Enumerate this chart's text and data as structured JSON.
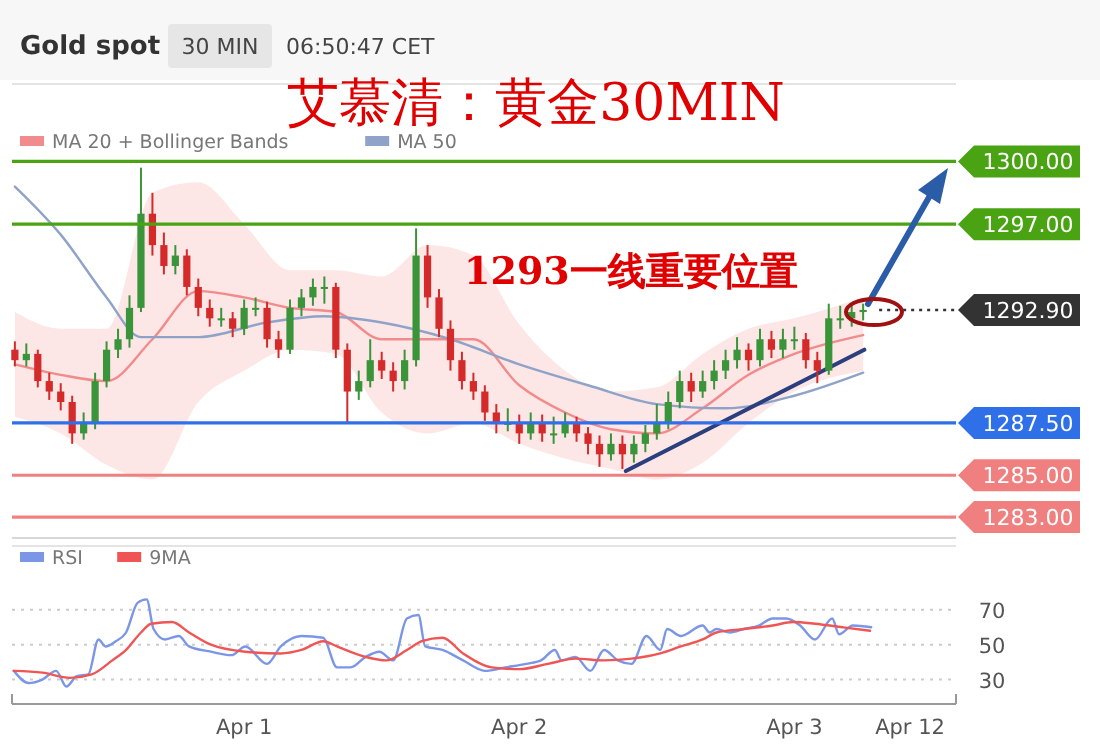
{
  "chart_data": [
    {
      "type": "candlestick",
      "title": "Gold spot",
      "subtitle": "艾慕清：黄金30MIN",
      "annotations": [
        "30 MIN",
        "06:50:47 CET",
        "1293一线重要位置"
      ],
      "xlim": [
        "--03-31T03:45",
        "--04-03T14:06"
      ],
      "ylim": [
        1282,
        1303.7
      ],
      "legend": "top left",
      "x": [
        "--03-31T04:00",
        "--03-31T05:00",
        "--03-31T06:00",
        "--03-31T07:00",
        "--03-31T08:00",
        "--03-31T09:00",
        "--03-31T10:00",
        "--03-31T11:00",
        "--03-31T12:00",
        "--03-31T13:00",
        "--03-31T14:00",
        "--03-31T15:00",
        "--03-31T16:00",
        "--03-31T17:00",
        "--03-31T18:00",
        "--03-31T19:00",
        "--03-31T20:00",
        "--03-31T21:00",
        "--03-31T22:00",
        "--03-31T23:00",
        "--04-01T00:00",
        "--04-01T01:00",
        "--04-01T02:00",
        "--04-01T03:00",
        "--04-01T04:00",
        "--04-01T05:00",
        "--04-01T06:00",
        "--04-01T07:00",
        "--04-01T08:00",
        "--04-01T09:00",
        "--04-01T10:00",
        "--04-01T11:00",
        "--04-01T12:00",
        "--04-01T13:00",
        "--04-01T14:00",
        "--04-01T15:00",
        "--04-01T16:00",
        "--04-01T17:00",
        "--04-01T18:00",
        "--04-01T19:00",
        "--04-01T20:00",
        "--04-01T21:00",
        "--04-01T22:00",
        "--04-01T23:00",
        "--04-02T00:00",
        "--04-02T01:00",
        "--04-02T02:00",
        "--04-02T03:00",
        "--04-02T04:00",
        "--04-02T05:00",
        "--04-02T06:00",
        "--04-02T07:00",
        "--04-02T08:00",
        "--04-02T09:00",
        "--04-02T10:00",
        "--04-02T11:00",
        "--04-02T12:00",
        "--04-02T13:00",
        "--04-02T14:00",
        "--04-02T15:00",
        "--04-02T16:00",
        "--04-02T17:00",
        "--04-02T18:00",
        "--04-02T19:00",
        "--04-02T20:00",
        "--04-02T21:00",
        "--04-02T22:00",
        "--04-02T23:00",
        "--04-03T00:00",
        "--04-03T01:00",
        "--04-03T02:00",
        "--04-03T03:00",
        "--04-03T04:00",
        "--04-03T05:00",
        "--04-03T06:00"
      ],
      "ohlc": [
        [
          1291.0,
          1291.4,
          1290.2,
          1290.5
        ],
        [
          1290.5,
          1291.3,
          1290.2,
          1290.8
        ],
        [
          1290.8,
          1291.0,
          1289.2,
          1289.5
        ],
        [
          1289.5,
          1289.9,
          1288.6,
          1289.0
        ],
        [
          1289.0,
          1289.4,
          1288.1,
          1288.5
        ],
        [
          1288.5,
          1288.8,
          1286.5,
          1287.0
        ],
        [
          1287.0,
          1288.0,
          1286.7,
          1287.5
        ],
        [
          1287.5,
          1289.9,
          1287.2,
          1289.5
        ],
        [
          1289.5,
          1291.4,
          1289.2,
          1291.0
        ],
        [
          1291.0,
          1292.0,
          1290.6,
          1291.5
        ],
        [
          1291.5,
          1293.6,
          1291.1,
          1293.0
        ],
        [
          1293.0,
          1299.7,
          1292.8,
          1297.5
        ],
        [
          1297.5,
          1298.5,
          1295.5,
          1296.0
        ],
        [
          1296.0,
          1296.6,
          1294.6,
          1295.0
        ],
        [
          1295.0,
          1296.0,
          1294.6,
          1295.5
        ],
        [
          1295.5,
          1295.8,
          1293.6,
          1294.0
        ],
        [
          1294.0,
          1294.4,
          1292.6,
          1293.0
        ],
        [
          1293.0,
          1293.4,
          1292.1,
          1292.5
        ],
        [
          1292.5,
          1293.0,
          1292.1,
          1292.5
        ],
        [
          1292.5,
          1292.8,
          1291.6,
          1292.0
        ],
        [
          1292.0,
          1293.4,
          1291.7,
          1293.0
        ],
        [
          1293.0,
          1293.5,
          1292.6,
          1293.0
        ],
        [
          1293.0,
          1293.3,
          1291.1,
          1291.5
        ],
        [
          1291.5,
          1291.9,
          1290.6,
          1291.0
        ],
        [
          1291.0,
          1293.4,
          1290.8,
          1293.0
        ],
        [
          1293.0,
          1293.9,
          1292.6,
          1293.5
        ],
        [
          1293.5,
          1294.4,
          1293.1,
          1294.0
        ],
        [
          1294.0,
          1294.5,
          1293.2,
          1294.0
        ],
        [
          1294.0,
          1294.2,
          1290.6,
          1291.0
        ],
        [
          1291.0,
          1291.3,
          1287.5,
          1289.0
        ],
        [
          1289.0,
          1290.0,
          1288.6,
          1289.5
        ],
        [
          1289.5,
          1291.5,
          1289.2,
          1290.5
        ],
        [
          1290.5,
          1290.9,
          1289.6,
          1290.0
        ],
        [
          1290.0,
          1290.4,
          1289.0,
          1289.5
        ],
        [
          1289.5,
          1291.0,
          1289.1,
          1290.5
        ],
        [
          1290.5,
          1296.8,
          1290.2,
          1295.5
        ],
        [
          1295.5,
          1296.0,
          1293.0,
          1293.5
        ],
        [
          1293.5,
          1293.9,
          1291.6,
          1292.0
        ],
        [
          1292.0,
          1292.4,
          1290.0,
          1290.5
        ],
        [
          1290.5,
          1290.9,
          1289.1,
          1289.5
        ],
        [
          1289.5,
          1289.9,
          1288.6,
          1289.0
        ],
        [
          1289.0,
          1289.3,
          1287.6,
          1288.0
        ],
        [
          1288.0,
          1288.4,
          1287.0,
          1287.5
        ],
        [
          1287.5,
          1288.2,
          1287.1,
          1287.5
        ],
        [
          1287.5,
          1287.9,
          1286.5,
          1287.0
        ],
        [
          1287.0,
          1288.0,
          1286.7,
          1287.5
        ],
        [
          1287.5,
          1287.9,
          1286.6,
          1287.0
        ],
        [
          1287.0,
          1287.8,
          1286.5,
          1287.0
        ],
        [
          1287.0,
          1288.0,
          1286.8,
          1287.5
        ],
        [
          1287.5,
          1287.8,
          1286.6,
          1287.0
        ],
        [
          1287.0,
          1287.3,
          1286.0,
          1286.5
        ],
        [
          1286.5,
          1286.9,
          1285.4,
          1286.0
        ],
        [
          1286.0,
          1287.0,
          1285.7,
          1286.5
        ],
        [
          1286.5,
          1286.9,
          1285.3,
          1286.0
        ],
        [
          1286.0,
          1286.9,
          1285.6,
          1286.5
        ],
        [
          1286.5,
          1287.4,
          1286.1,
          1287.0
        ],
        [
          1287.0,
          1288.4,
          1286.7,
          1287.5
        ],
        [
          1287.5,
          1289.0,
          1287.2,
          1288.5
        ],
        [
          1288.5,
          1290.0,
          1288.2,
          1289.5
        ],
        [
          1289.5,
          1289.9,
          1288.5,
          1289.0
        ],
        [
          1289.0,
          1290.0,
          1288.7,
          1289.5
        ],
        [
          1289.5,
          1290.5,
          1289.1,
          1290.0
        ],
        [
          1290.0,
          1291.0,
          1289.6,
          1290.5
        ],
        [
          1290.5,
          1291.6,
          1290.1,
          1291.0
        ],
        [
          1291.0,
          1291.3,
          1290.0,
          1290.5
        ],
        [
          1290.5,
          1292.0,
          1290.2,
          1291.5
        ],
        [
          1291.5,
          1291.9,
          1290.6,
          1291.0
        ],
        [
          1291.0,
          1292.0,
          1290.6,
          1291.5
        ],
        [
          1291.5,
          1292.1,
          1291.0,
          1291.5
        ],
        [
          1291.5,
          1291.8,
          1290.1,
          1290.5
        ],
        [
          1290.5,
          1290.9,
          1289.4,
          1290.0
        ],
        [
          1290.0,
          1293.2,
          1289.8,
          1292.5
        ],
        [
          1292.5,
          1293.1,
          1292.0,
          1292.5
        ],
        [
          1292.5,
          1293.2,
          1292.1,
          1292.8
        ],
        [
          1292.8,
          1293.2,
          1292.4,
          1292.9
        ]
      ],
      "colors": [
        "#d42a2a",
        "#3a943a",
        "#d42a2a",
        "#d42a2a",
        "#d42a2a",
        "#d42a2a",
        "#3a943a",
        "#3a943a",
        "#3a943a",
        "#3a943a",
        "#3a943a",
        "#3a943a",
        "#d42a2a",
        "#d42a2a",
        "#3a943a",
        "#d42a2a",
        "#d42a2a",
        "#d42a2a",
        "#3a943a",
        "#d42a2a",
        "#3a943a",
        "#3a943a",
        "#d42a2a",
        "#d42a2a",
        "#3a943a",
        "#3a943a",
        "#3a943a",
        "#3a943a",
        "#d42a2a",
        "#d42a2a",
        "#3a943a",
        "#3a943a",
        "#d42a2a",
        "#d42a2a",
        "#3a943a",
        "#3a943a",
        "#d42a2a",
        "#d42a2a",
        "#d42a2a",
        "#d42a2a",
        "#d42a2a",
        "#d42a2a",
        "#d42a2a",
        "#3a943a",
        "#d42a2a",
        "#3a943a",
        "#d42a2a",
        "#3a943a",
        "#3a943a",
        "#d42a2a",
        "#d42a2a",
        "#d42a2a",
        "#3a943a",
        "#d42a2a",
        "#3a943a",
        "#3a943a",
        "#3a943a",
        "#3a943a",
        "#3a943a",
        "#d42a2a",
        "#3a943a",
        "#3a943a",
        "#3a943a",
        "#3a943a",
        "#d42a2a",
        "#3a943a",
        "#d42a2a",
        "#3a943a",
        "#3a943a",
        "#d42a2a",
        "#d42a2a",
        "#3a943a",
        "#3a943a",
        "#3a943a",
        "#3a943a"
      ],
      "series": [
        {
          "type": "line",
          "name": "MA 20 + Bollinger Bands",
          "color": "#f28b8b",
          "x": [
            "--03-31T04:00",
            "--03-31T08:00",
            "--03-31T12:00",
            "--03-31T16:00",
            "--03-31T20:00",
            "--04-01T00:00",
            "--04-01T04:00",
            "--04-01T08:00",
            "--04-01T12:00",
            "--04-01T16:00",
            "--04-01T20:00",
            "--04-02T00:00",
            "--04-02T04:00",
            "--04-02T08:00",
            "--04-02T12:00",
            "--04-02T16:00",
            "--04-02T20:00",
            "--04-03T00:00",
            "--04-03T06:00"
          ],
          "values": [
            1290.3,
            1289.8,
            1289.5,
            1291.5,
            1293.8,
            1293.5,
            1293.0,
            1292.8,
            1291.5,
            1291.5,
            1291.5,
            1289.3,
            1288.0,
            1287.2,
            1287.0,
            1288.2,
            1289.8,
            1290.8,
            1291.7
          ],
          "lower": [
            1287.8,
            1287.0,
            1285.5,
            1284.8,
            1288.5,
            1290.0,
            1291.0,
            1290.8,
            1288.0,
            1287.0,
            1287.5,
            1286.5,
            1285.8,
            1285.3,
            1284.8,
            1285.6,
            1287.5,
            1289.0,
            1290.0
          ],
          "upper": [
            1292.8,
            1292.0,
            1292.0,
            1298.5,
            1299.0,
            1297.0,
            1294.8,
            1294.8,
            1294.5,
            1296.0,
            1295.5,
            1292.2,
            1290.0,
            1289.0,
            1289.2,
            1290.8,
            1292.0,
            1292.5,
            1293.5
          ]
        },
        {
          "type": "line",
          "name": "MA 50",
          "color": "#8fa3c8",
          "x": [
            "--03-31T04:00",
            "--03-31T08:00",
            "--03-31T12:00",
            "--03-31T15:00",
            "--03-31T20:00",
            "--04-01T02:00",
            "--04-01T07:00",
            "--04-01T12:00",
            "--04-01T18:00",
            "--04-02T00:00",
            "--04-02T06:00",
            "--04-02T12:00",
            "--04-02T18:00",
            "--04-03T00:00",
            "--04-03T06:00"
          ],
          "values": [
            1298.8,
            1296.5,
            1293.5,
            1291.6,
            1291.6,
            1292.3,
            1292.6,
            1292.3,
            1291.5,
            1290.3,
            1289.3,
            1288.4,
            1288.2,
            1288.8,
            1289.9
          ]
        },
        {
          "type": "line",
          "color": "#2b3f7e",
          "x": [
            "--04-02T09:18",
            "--04-03T06:06"
          ],
          "values": [
            1285.2,
            1291.0
          ]
        }
      ],
      "ref_lines": [
        {
          "axis": "y",
          "value": 1300,
          "label": "1300.00",
          "color": "#4aa312"
        },
        {
          "axis": "y",
          "value": 1297,
          "label": "1297.00",
          "color": "#4aa312"
        },
        {
          "axis": "y",
          "value": 1292.9,
          "label": "1292.90",
          "color": "#333333",
          "line_style": "dotted"
        },
        {
          "axis": "y",
          "value": 1287.5,
          "label": "1287.50",
          "color": "#2f6fe8"
        },
        {
          "axis": "y",
          "value": 1285,
          "label": "1285.00",
          "color": "#f08080"
        },
        {
          "axis": "y",
          "value": 1283,
          "label": "1283.00",
          "color": "#f08080"
        }
      ]
    },
    {
      "type": "line",
      "xlim": [
        "--03-31T03:45",
        "--04-03T14:06"
      ],
      "xticks": [
        {
          "value": "--04-01",
          "label": "Apr 1"
        },
        {
          "value": "--04-02",
          "label": "Apr 2"
        },
        {
          "value": "--04-03",
          "label": "Apr 3"
        }
      ],
      "annotations": [
        "Apr 12"
      ],
      "ylim": [
        16,
        106.6
      ],
      "yticks": [
        30,
        50,
        70
      ],
      "grid": "y",
      "legend": "top left",
      "series": [
        {
          "name": "RSI",
          "color": "#7b96e6",
          "x": [
            "--03-31T03:54",
            "--03-31T05:12",
            "--03-31T06:24",
            "--03-31T07:36",
            "--03-31T08:30",
            "--03-31T09:24",
            "--03-31T10:24",
            "--03-31T11:18",
            "--03-31T11:54",
            "--03-31T12:48",
            "--03-31T13:42",
            "--03-31T14:42",
            "--03-31T15:30",
            "--03-31T16:06",
            "--03-31T17:06",
            "--03-31T18:18",
            "--03-31T19:12",
            "--03-31T21:06",
            "--03-31T22:54",
            "--04-01T00:06",
            "--04-01T02:00",
            "--04-01T03:12",
            "--04-01T05:00",
            "--04-01T06:54",
            "--04-01T08:06",
            "--04-01T09:18",
            "--04-01T10:36",
            "--04-01T11:48",
            "--04-01T13:00",
            "--04-01T14:12",
            "--04-01T15:12",
            "--04-01T15:48",
            "--04-01T17:18",
            "--04-01T19:06",
            "--04-01T21:00",
            "--04-01T22:48",
            "--04-02T00:36",
            "--04-02T01:54",
            "--04-02T03:06",
            "--04-02T03:42",
            "--04-02T04:54",
            "--04-02T06:12",
            "--04-02T07:24",
            "--04-02T08:36",
            "--04-02T09:48",
            "--04-02T11:06",
            "--04-02T12:18",
            "--04-02T12:54",
            "--04-02T14:06",
            "--04-02T16:00",
            "--04-02T16:36",
            "--04-02T17:12",
            "--04-02T18:24",
            "--04-02T19:36",
            "--04-02T20:54",
            "--04-02T22:06",
            "--04-02T23:18",
            "--04-03T00:30",
            "--04-03T01:48",
            "--04-03T03:18",
            "--04-03T03:54",
            "--04-03T05:06",
            "--04-03T06:42"
          ],
          "values": [
            35,
            28,
            30,
            35,
            26,
            32,
            33,
            53,
            49,
            52,
            57,
            74,
            76,
            59,
            53,
            55,
            49,
            46,
            44,
            49,
            39,
            49,
            55,
            54,
            37,
            37,
            43,
            46,
            41,
            65,
            67,
            49,
            47,
            41,
            35,
            37,
            39,
            41,
            47,
            41,
            43,
            35,
            47,
            41,
            39,
            55,
            47,
            59,
            55,
            61,
            57,
            59,
            57,
            59,
            61,
            65,
            65,
            61,
            53,
            65,
            56,
            61,
            60
          ]
        },
        {
          "name": "9MA",
          "color": "#f05555",
          "x": [
            "--03-31T03:54",
            "--03-31T06:24",
            "--03-31T08:48",
            "--03-31T10:42",
            "--03-31T12:30",
            "--03-31T13:42",
            "--03-31T15:00",
            "--03-31T15:54",
            "--03-31T17:42",
            "--03-31T19:12",
            "--03-31T21:06",
            "--04-01T00:06",
            "--04-01T03:12",
            "--04-01T05:00",
            "--04-01T06:54",
            "--04-01T08:06",
            "--04-01T10:36",
            "--04-01T12:24",
            "--04-01T14:12",
            "--04-01T15:30",
            "--04-01T17:18",
            "--04-01T19:06",
            "--04-01T21:36",
            "--04-02T00:00",
            "--04-02T02:30",
            "--04-02T04:54",
            "--04-02T07:24",
            "--04-02T09:48",
            "--04-02T12:18",
            "--04-02T14:06",
            "--04-02T16:00",
            "--04-02T17:12",
            "--04-02T19:36",
            "--04-02T22:06",
            "--04-02T23:54",
            "--04-03T01:48",
            "--04-03T04:12",
            "--04-03T06:36"
          ],
          "values": [
            35,
            34,
            31,
            33,
            41,
            47,
            57,
            62,
            63,
            57,
            50,
            46,
            45,
            47,
            52,
            49,
            43,
            41,
            47,
            52,
            54,
            45,
            37,
            36,
            39,
            42,
            41,
            42,
            45,
            49,
            53,
            57,
            59,
            61,
            63,
            62,
            60,
            58
          ]
        }
      ]
    }
  ]
}
